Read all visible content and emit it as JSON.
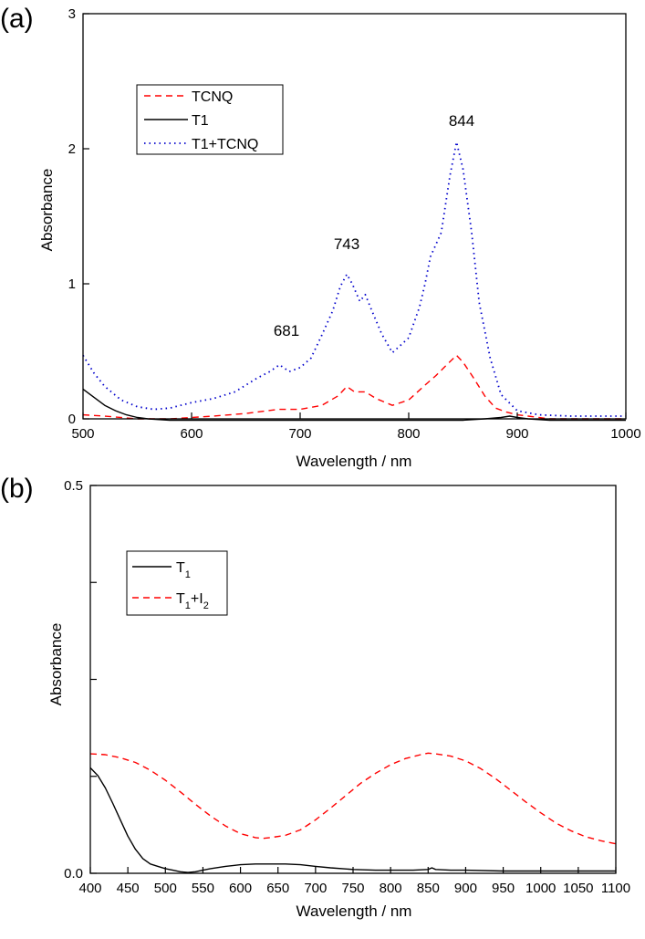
{
  "chart_data": [
    {
      "panel_label": "(a)",
      "type": "line",
      "xlabel": "Wavelength / nm",
      "ylabel": "Absorbance",
      "xlim": [
        500,
        1000
      ],
      "ylim": [
        0,
        3
      ],
      "xticks": [
        "500",
        "600",
        "700",
        "800",
        "900",
        "1000"
      ],
      "yticks": [
        "0",
        "1",
        "2",
        "3"
      ],
      "legend": {
        "placement": "top-left",
        "entries": [
          "TCNQ",
          "T1",
          "T1+TCNQ"
        ]
      },
      "annotations": [
        {
          "text": "681",
          "x": 681,
          "y": 0.52
        },
        {
          "text": "743",
          "x": 743,
          "y": 1.17
        },
        {
          "text": "844",
          "x": 844,
          "y": 2.12
        }
      ],
      "series": [
        {
          "name": "TCNQ",
          "color": "#ff0000",
          "style": "dashed",
          "x": [
            500,
            520,
            550,
            580,
            600,
            620,
            650,
            680,
            700,
            720,
            735,
            743,
            750,
            760,
            770,
            785,
            800,
            815,
            825,
            835,
            844,
            850,
            860,
            870,
            880,
            890,
            900,
            910,
            930,
            960,
            1000
          ],
          "y": [
            0.03,
            0.02,
            0.0,
            0.0,
            0.01,
            0.02,
            0.04,
            0.07,
            0.07,
            0.1,
            0.17,
            0.24,
            0.2,
            0.2,
            0.15,
            0.1,
            0.14,
            0.25,
            0.32,
            0.4,
            0.47,
            0.42,
            0.3,
            0.17,
            0.08,
            0.05,
            0.03,
            0.02,
            0.0,
            0.0,
            0.0
          ]
        },
        {
          "name": "T1",
          "color": "#000000",
          "style": "solid",
          "x": [
            500,
            510,
            520,
            530,
            540,
            550,
            560,
            580,
            600,
            650,
            700,
            750,
            800,
            850,
            870,
            885,
            893,
            900,
            910,
            930,
            960,
            1000
          ],
          "y": [
            0.22,
            0.16,
            0.1,
            0.06,
            0.03,
            0.01,
            0.0,
            -0.01,
            -0.01,
            -0.01,
            -0.01,
            -0.01,
            -0.01,
            -0.01,
            0.0,
            0.01,
            0.02,
            0.01,
            0.0,
            -0.01,
            -0.01,
            -0.01
          ]
        },
        {
          "name": "T1+TCNQ",
          "color": "#0000cc",
          "style": "dotted",
          "x": [
            500,
            510,
            520,
            535,
            550,
            565,
            580,
            600,
            620,
            640,
            660,
            672,
            681,
            690,
            700,
            710,
            720,
            730,
            737,
            743,
            748,
            755,
            760,
            765,
            775,
            785,
            800,
            810,
            815,
            820,
            830,
            838,
            844,
            850,
            858,
            865,
            875,
            885,
            900,
            920,
            950,
            1000
          ],
          "y": [
            0.47,
            0.34,
            0.24,
            0.14,
            0.09,
            0.07,
            0.08,
            0.12,
            0.15,
            0.2,
            0.3,
            0.35,
            0.4,
            0.35,
            0.38,
            0.45,
            0.62,
            0.8,
            0.98,
            1.07,
            1.0,
            0.87,
            0.92,
            0.82,
            0.63,
            0.49,
            0.6,
            0.83,
            1.0,
            1.2,
            1.38,
            1.8,
            2.05,
            1.85,
            1.38,
            0.86,
            0.45,
            0.18,
            0.06,
            0.03,
            0.02,
            0.02
          ]
        }
      ]
    },
    {
      "panel_label": "(b)",
      "type": "line",
      "xlabel": "Wavelength / nm",
      "ylabel": "Absorbance",
      "xlim": [
        400,
        1100
      ],
      "ylim": [
        0,
        0.5
      ],
      "xticks": [
        "400",
        "450",
        "500",
        "550",
        "600",
        "650",
        "700",
        "750",
        "800",
        "850",
        "900",
        "950",
        "1000",
        "1050",
        "1100"
      ],
      "yticks": [
        "0.0",
        "",
        "",
        "",
        "0.5"
      ],
      "legend": {
        "placement": "top-left"
      },
      "series": [
        {
          "name": "T1",
          "legend_base": "T",
          "legend_sub": "1",
          "color": "#000000",
          "style": "solid",
          "x": [
            400,
            410,
            420,
            430,
            440,
            450,
            460,
            470,
            480,
            490,
            500,
            510,
            520,
            530,
            540,
            550,
            560,
            580,
            600,
            620,
            640,
            660,
            680,
            700,
            720,
            750,
            780,
            800,
            830,
            850,
            855,
            860,
            880,
            900,
            950,
            1000,
            1050,
            1100
          ],
          "y": [
            0.136,
            0.126,
            0.11,
            0.09,
            0.069,
            0.048,
            0.031,
            0.019,
            0.012,
            0.009,
            0.006,
            0.004,
            0.002,
            0.001,
            0.002,
            0.004,
            0.006,
            0.009,
            0.011,
            0.012,
            0.012,
            0.012,
            0.011,
            0.009,
            0.007,
            0.005,
            0.004,
            0.004,
            0.004,
            0.005,
            0.007,
            0.005,
            0.004,
            0.004,
            0.003,
            0.003,
            0.003,
            0.003
          ]
        },
        {
          "name": "T1+I2",
          "legend_base": "T",
          "legend_sub": "1",
          "legend_mid": "+I",
          "legend_sub2": "2",
          "color": "#ff0000",
          "style": "dashed",
          "x": [
            400,
            420,
            440,
            460,
            480,
            500,
            520,
            540,
            560,
            580,
            600,
            620,
            630,
            640,
            660,
            680,
            700,
            720,
            740,
            760,
            780,
            800,
            820,
            840,
            850,
            860,
            880,
            900,
            920,
            940,
            960,
            980,
            1000,
            1020,
            1040,
            1060,
            1080,
            1100
          ],
          "y": [
            0.154,
            0.153,
            0.149,
            0.143,
            0.133,
            0.12,
            0.105,
            0.089,
            0.074,
            0.061,
            0.051,
            0.046,
            0.045,
            0.046,
            0.049,
            0.056,
            0.069,
            0.084,
            0.1,
            0.116,
            0.129,
            0.14,
            0.148,
            0.153,
            0.155,
            0.154,
            0.151,
            0.145,
            0.135,
            0.122,
            0.107,
            0.092,
            0.078,
            0.065,
            0.055,
            0.047,
            0.042,
            0.038
          ]
        }
      ]
    }
  ]
}
